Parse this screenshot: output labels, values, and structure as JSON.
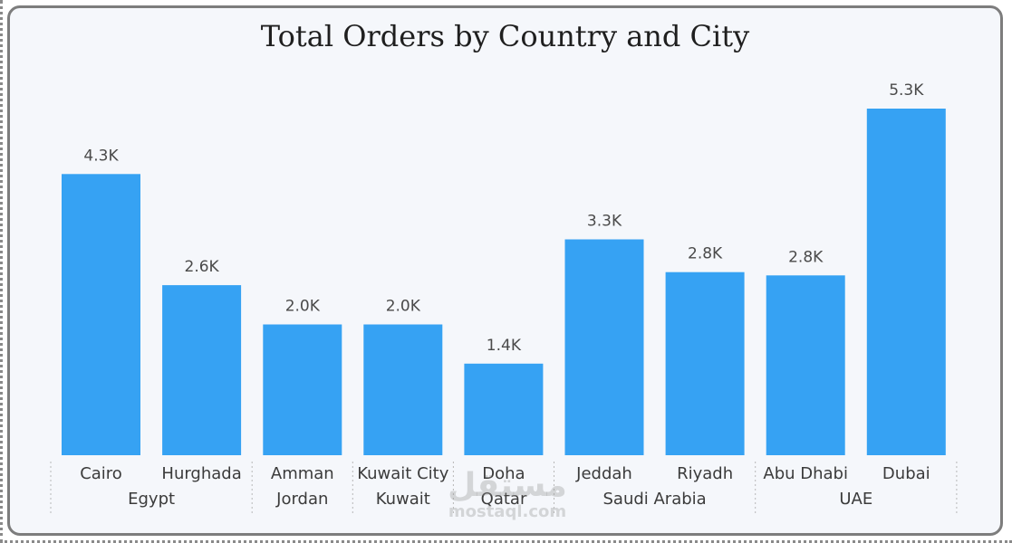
{
  "chart_data": {
    "type": "bar",
    "title": "Total Orders by Country and City",
    "categories": [
      "Cairo",
      "Hurghada",
      "Amman",
      "Kuwait City",
      "Doha",
      "Jeddah",
      "Riyadh",
      "Abu Dhabi",
      "Dubai"
    ],
    "groups": [
      {
        "name": "Egypt",
        "categories": [
          "Cairo",
          "Hurghada"
        ]
      },
      {
        "name": "Jordan",
        "categories": [
          "Amman"
        ]
      },
      {
        "name": "Kuwait",
        "categories": [
          "Kuwait City"
        ]
      },
      {
        "name": "Qatar",
        "categories": [
          "Doha"
        ]
      },
      {
        "name": "Saudi Arabia",
        "categories": [
          "Jeddah",
          "Riyadh"
        ]
      },
      {
        "name": "UAE",
        "categories": [
          "Abu Dhabi",
          "Dubai"
        ]
      }
    ],
    "values": [
      4300,
      2600,
      2000,
      2000,
      1400,
      3300,
      2800,
      2750,
      5300
    ],
    "data_labels": [
      "4.3K",
      "2.6K",
      "2.0K",
      "2.0K",
      "1.4K",
      "3.3K",
      "2.8K",
      "2.8K",
      "5.3K"
    ],
    "ylim": [
      0,
      5300
    ],
    "grid": false,
    "bar_color": "#36a2f3"
  },
  "watermark": {
    "arabic": "مستقل",
    "url": "mostaql.com"
  }
}
